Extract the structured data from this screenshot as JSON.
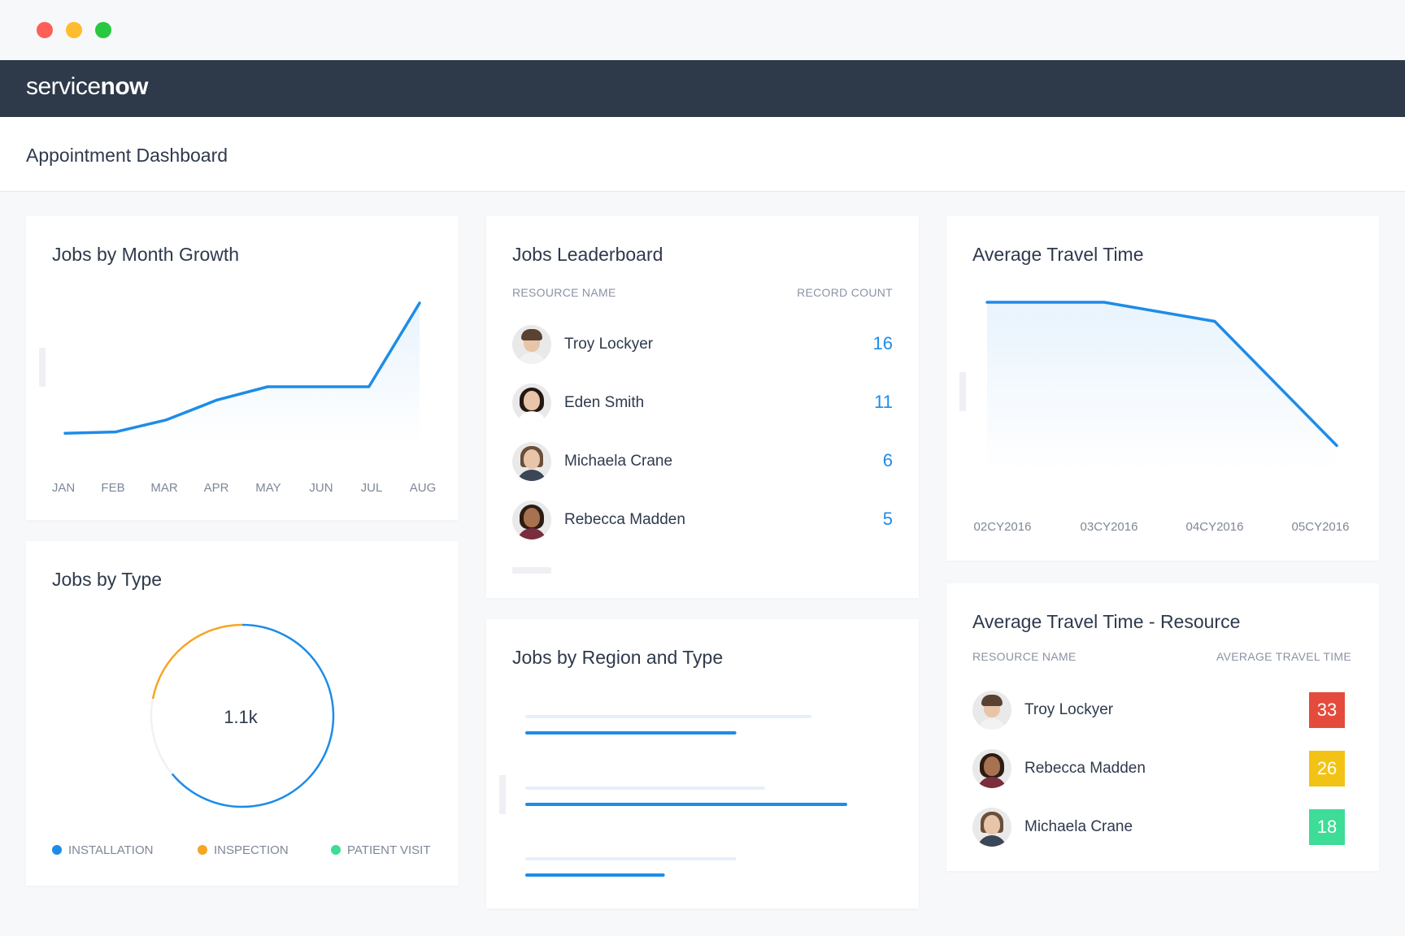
{
  "window": {
    "controls": [
      "close",
      "minimize",
      "zoom"
    ]
  },
  "brand": {
    "logo_prefix": "service",
    "logo_suffix": "now",
    "nav_bg": "#2e3a4a"
  },
  "page": {
    "title": "Appointment Dashboard"
  },
  "jobs_by_month": {
    "title": "Jobs by Month Growth",
    "chart_data": {
      "type": "area",
      "categories": [
        "JAN",
        "FEB",
        "MAR",
        "APR",
        "MAY",
        "JUN",
        "JUL",
        "AUG"
      ],
      "values": [
        6,
        7,
        16,
        31,
        41,
        41,
        41,
        104
      ],
      "color": "#1d8ce8",
      "grid": false,
      "axes_visible": false
    }
  },
  "leaderboard": {
    "title": "Jobs Leaderboard",
    "col_name": "RESOURCE NAME",
    "col_count": "RECORD COUNT",
    "rows": [
      {
        "name": "Troy Lockyer",
        "count": "16"
      },
      {
        "name": "Eden Smith",
        "count": "11"
      },
      {
        "name": "Michaela Crane",
        "count": "6"
      },
      {
        "name": "Rebecca Madden",
        "count": "5"
      }
    ]
  },
  "travel_time": {
    "title": "Average Travel Time",
    "chart_data": {
      "type": "area",
      "categories": [
        "02CY2016",
        "03CY2016",
        "04CY2016",
        "05CY2016"
      ],
      "values": [
        100,
        100,
        88,
        10
      ],
      "color": "#1d8ce8",
      "grid": false,
      "axes_visible": false
    }
  },
  "jobs_by_type": {
    "title": "Jobs by Type",
    "center_label": "1.1k",
    "chart_data": {
      "type": "pie",
      "donut": true,
      "categories": [
        "INSTALLATION",
        "INSPECTION",
        "PATIENT VISIT"
      ],
      "values": [
        64,
        22,
        14
      ],
      "colors": [
        "#1d8ce8",
        "#f5a623",
        "#3ddc97"
      ]
    },
    "legend": [
      {
        "label": "INSTALLATION",
        "color": "#1d8ce8"
      },
      {
        "label": "INSPECTION",
        "color": "#f5a623"
      },
      {
        "label": "PATIENT VISIT",
        "color": "#3ddc97"
      }
    ]
  },
  "region_type": {
    "title": "Jobs by Region and Type",
    "chart_data": {
      "type": "bar",
      "orientation": "horizontal",
      "axes_visible": false,
      "groups": [
        {
          "bars": [
            {
              "value": 80,
              "color": "#e4f0fb"
            },
            {
              "value": 59,
              "color": "#1d8ce8"
            }
          ]
        },
        {
          "bars": [
            {
              "value": 67,
              "color": "#e4f0fb"
            },
            {
              "value": 90,
              "color": "#1d8ce8"
            }
          ]
        },
        {
          "bars": [
            {
              "value": 59,
              "color": "#e4f0fb"
            },
            {
              "value": 39,
              "color": "#1d8ce8"
            }
          ]
        }
      ]
    }
  },
  "resource_travel": {
    "title": "Average Travel Time - Resource",
    "col_name": "RESOURCE NAME",
    "col_value": "AVERAGE TRAVEL TIME",
    "rows": [
      {
        "name": "Troy Lockyer",
        "value": "33",
        "color": "#e54b3c"
      },
      {
        "name": "Rebecca Madden",
        "value": "26",
        "color": "#f2c314"
      },
      {
        "name": "Michaela Crane",
        "value": "18",
        "color": "#3ddc97"
      }
    ]
  }
}
